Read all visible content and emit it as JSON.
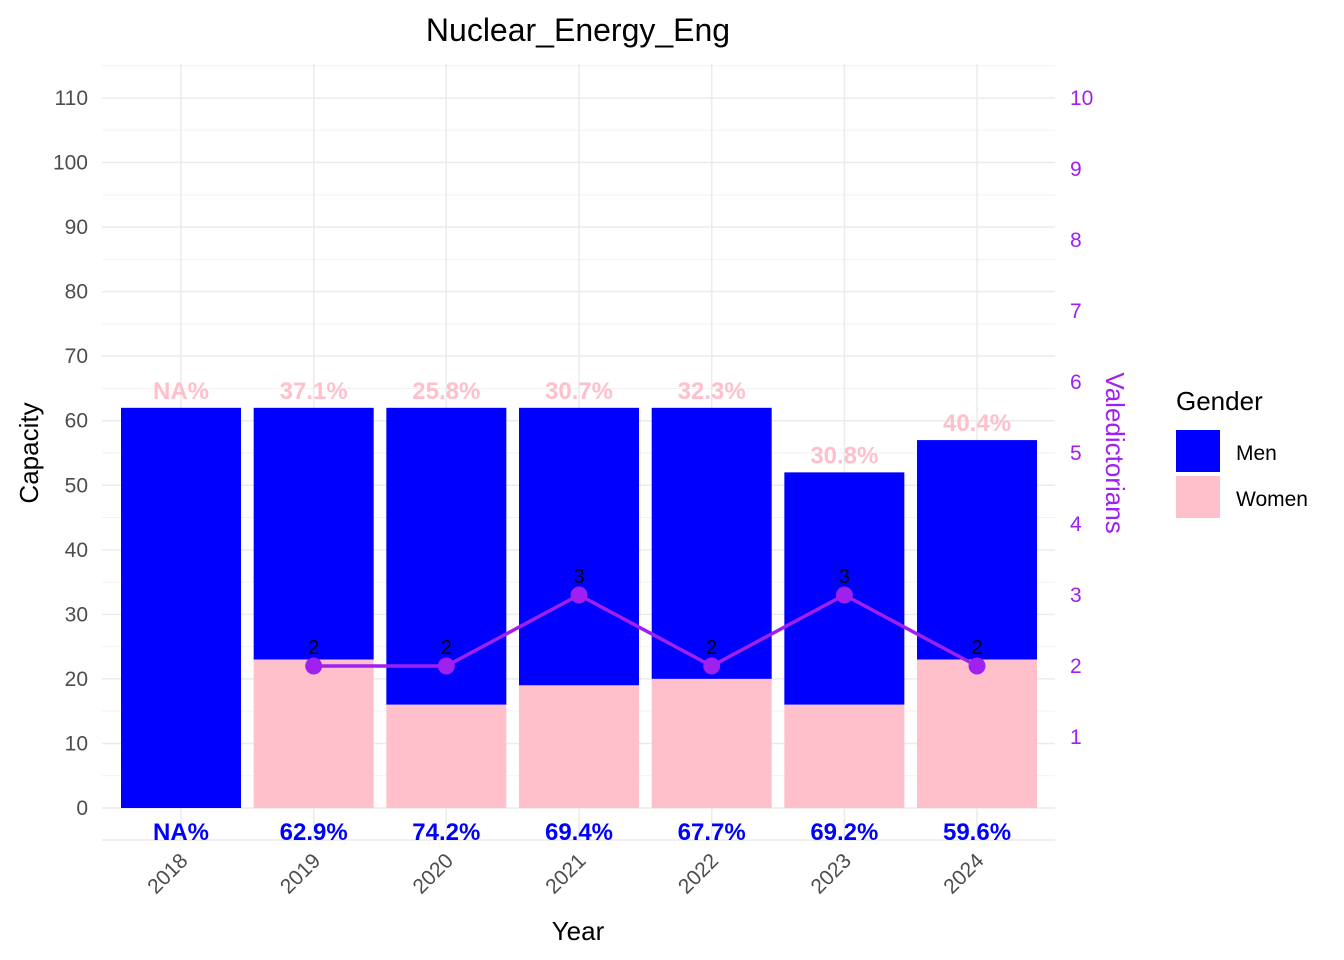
{
  "chart_data": {
    "type": "bar",
    "title": "Nuclear_Energy_Eng",
    "xlabel": "Year",
    "ylabel": "Capacity",
    "y2label": "Valedictorians",
    "ylim": [
      0,
      110
    ],
    "y2lim": [
      0,
      10
    ],
    "left_ticks": [
      "0",
      "10",
      "20",
      "30",
      "40",
      "50",
      "60",
      "70",
      "80",
      "90",
      "100",
      "110"
    ],
    "right_ticks": [
      "1",
      "2",
      "3",
      "4",
      "5",
      "6",
      "7",
      "8",
      "9",
      "10"
    ],
    "categories": [
      "2018",
      "2019",
      "2020",
      "2021",
      "2022",
      "2023",
      "2024"
    ],
    "stacked": true,
    "series": [
      {
        "name": "Women",
        "color": "#ffc0cb",
        "values": [
          0,
          23,
          16,
          19,
          20,
          16,
          23
        ]
      },
      {
        "name": "Men",
        "color": "#0000ff",
        "values": [
          62,
          39,
          46,
          43,
          42,
          36,
          34
        ]
      }
    ],
    "line_series": {
      "name": "Valedictorians",
      "color": "#a020f0",
      "axis": "right",
      "x": [
        "2019",
        "2020",
        "2021",
        "2022",
        "2023",
        "2024"
      ],
      "values": [
        2,
        2,
        3,
        2,
        3,
        2
      ],
      "labels": [
        "2",
        "2",
        "3",
        "2",
        "3",
        "2"
      ]
    },
    "women_pct_labels": [
      "NA%",
      "37.1%",
      "25.8%",
      "30.7%",
      "32.3%",
      "30.8%",
      "40.4%"
    ],
    "men_pct_labels": [
      "NA%",
      "62.9%",
      "74.2%",
      "69.4%",
      "67.7%",
      "69.2%",
      "59.6%"
    ],
    "legend": {
      "title": "Gender",
      "placement": "right",
      "items": [
        {
          "label": "Men",
          "color": "#0000ff"
        },
        {
          "label": "Women",
          "color": "#ffc0cb"
        }
      ]
    },
    "grid": true
  }
}
